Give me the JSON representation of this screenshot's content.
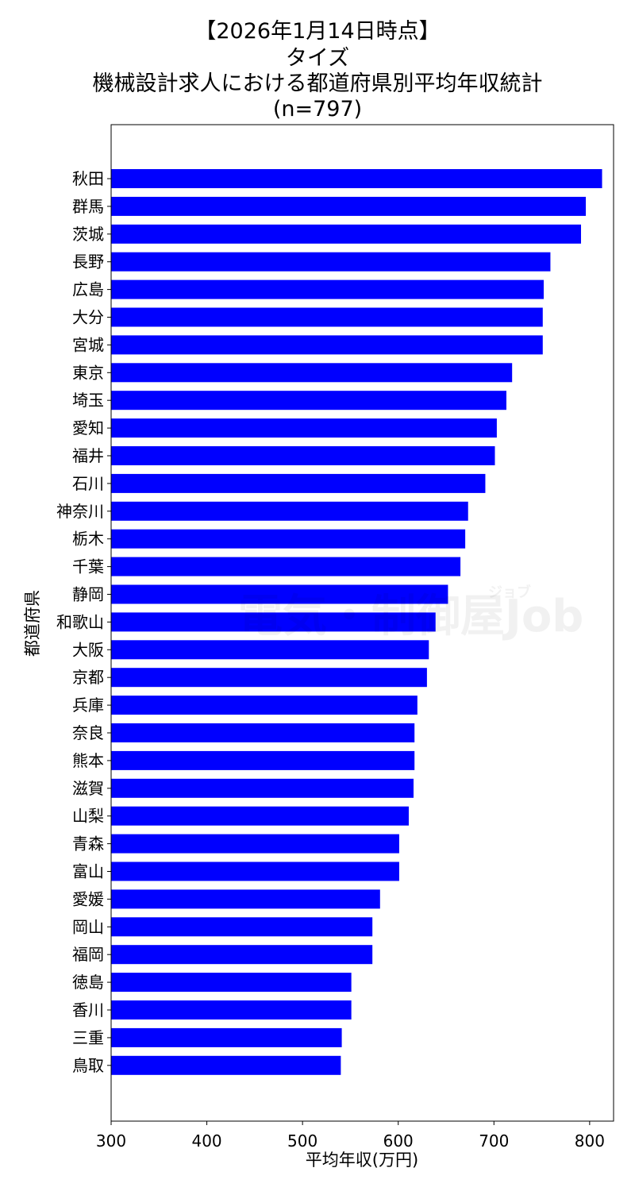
{
  "chart_data": {
    "type": "bar",
    "orientation": "horizontal",
    "title_lines": [
      "【2026年1月14日時点】",
      "タイズ",
      "機械設計求人における都道府県別平均年収統計",
      "(n=797)"
    ],
    "xlabel": "平均年収(万円)",
    "ylabel": "都道府県",
    "xlim": [
      300,
      825
    ],
    "xticks": [
      300,
      400,
      500,
      600,
      700,
      800
    ],
    "bar_color": "#0000ff",
    "grid": false,
    "categories": [
      "秋田",
      "群馬",
      "茨城",
      "長野",
      "広島",
      "大分",
      "宮城",
      "東京",
      "埼玉",
      "愛知",
      "福井",
      "石川",
      "神奈川",
      "栃木",
      "千葉",
      "静岡",
      "和歌山",
      "大阪",
      "京都",
      "兵庫",
      "奈良",
      "熊本",
      "滋賀",
      "山梨",
      "青森",
      "富山",
      "愛媛",
      "岡山",
      "福岡",
      "徳島",
      "香川",
      "三重",
      "鳥取"
    ],
    "values": [
      813,
      796,
      791,
      759,
      752,
      751,
      751,
      719,
      713,
      703,
      701,
      691,
      673,
      670,
      665,
      652,
      639,
      632,
      630,
      620,
      617,
      617,
      616,
      611,
      601,
      601,
      581,
      573,
      573,
      551,
      551,
      541,
      540
    ]
  },
  "watermark": {
    "main": "電気・制御屋Job",
    "sub": "ジョブ"
  }
}
